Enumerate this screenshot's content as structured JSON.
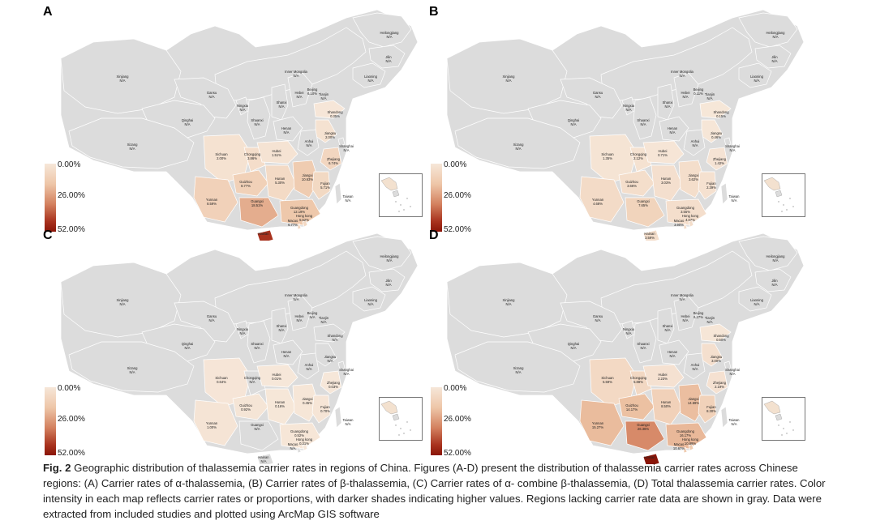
{
  "caption": {
    "fig_label": "Fig. 2",
    "text": "Geographic distribution of thalassemia carrier rates in regions of China. Figures (A-D) present the distribution of thalassemia carrier rates across Chinese regions: (A) Carrier rates of α-thalassemia, (B) Carrier rates of β-thalassemia, (C) Carrier rates of α- combine β-thalassemia, (D) Total thalassemia carrier rates. Color intensity in each map reflects carrier rates or proportions, with darker shades indicating higher values. Regions lacking carrier rate data are shown in gray. Data were extracted from included studies and plotted using ArcMap GIS software"
  },
  "legend": {
    "min": "0.00%",
    "mid": "26.00%",
    "max": "52.00%",
    "color_low": "#f6e7d9",
    "color_high": "#8a1508",
    "no_data_color": "#dcdcdc"
  },
  "panels": [
    {
      "letter": "A",
      "title": "Carrier rates of α-thalassemia",
      "regions": [
        {
          "name": "Heilongjiang",
          "value": "N/A"
        },
        {
          "name": "Jilin",
          "value": "N/A"
        },
        {
          "name": "Liaoning",
          "value": "N/A"
        },
        {
          "name": "Inner Mongolia",
          "value": "N/A"
        },
        {
          "name": "Xinjiang",
          "value": "N/A"
        },
        {
          "name": "Gansu",
          "value": "N/A"
        },
        {
          "name": "Beijing",
          "value": "6.10%"
        },
        {
          "name": "Tianjin",
          "value": "N/A"
        },
        {
          "name": "Hebei",
          "value": "N/A"
        },
        {
          "name": "Ningxia",
          "value": "N/A"
        },
        {
          "name": "Shanxi",
          "value": "N/A"
        },
        {
          "name": "Shandong",
          "value": "0.35%"
        },
        {
          "name": "Qinghai",
          "value": "N/A"
        },
        {
          "name": "Shaanxi",
          "value": "N/A"
        },
        {
          "name": "Henan",
          "value": "N/A"
        },
        {
          "name": "Jiangsu",
          "value": "2.00%"
        },
        {
          "name": "Xizang",
          "value": "N/A"
        },
        {
          "name": "Anhui",
          "value": "N/A"
        },
        {
          "name": "Shanghai",
          "value": "N/A"
        },
        {
          "name": "Sichuan",
          "value": "2.00%"
        },
        {
          "name": "Chongqing",
          "value": "3.86%"
        },
        {
          "name": "Hubei",
          "value": "1.51%"
        },
        {
          "name": "Zhejiang",
          "value": "6.74%"
        },
        {
          "name": "Guizhou",
          "value": "8.77%"
        },
        {
          "name": "Hunan",
          "value": "5.30%"
        },
        {
          "name": "Jiangxi",
          "value": "10.63%"
        },
        {
          "name": "Fujian",
          "value": "5.71%"
        },
        {
          "name": "Yunnan",
          "value": "8.59%"
        },
        {
          "name": "Guangxi",
          "value": "18.51%"
        },
        {
          "name": "Guangdong",
          "value": "12.19%"
        },
        {
          "name": "Taiwan",
          "value": "N/A"
        },
        {
          "name": "Hong kong",
          "value": "5.52%"
        },
        {
          "name": "Macao",
          "value": "6.77%"
        },
        {
          "name": "Hainan",
          "value": ""
        }
      ]
    },
    {
      "letter": "B",
      "title": "Carrier rates of β-thalassemia",
      "regions": [
        {
          "name": "Heilongjiang",
          "value": "N/A"
        },
        {
          "name": "Jilin",
          "value": "N/A"
        },
        {
          "name": "Liaoning",
          "value": "N/A"
        },
        {
          "name": "Inner Mongolia",
          "value": "N/A"
        },
        {
          "name": "Xinjiang",
          "value": "N/A"
        },
        {
          "name": "Gansu",
          "value": "N/A"
        },
        {
          "name": "Beijing",
          "value": "0.11%"
        },
        {
          "name": "Tianjin",
          "value": "N/A"
        },
        {
          "name": "Hebei",
          "value": "N/A"
        },
        {
          "name": "Ningxia",
          "value": "N/A"
        },
        {
          "name": "Shanxi",
          "value": "N/A"
        },
        {
          "name": "Shandong",
          "value": "0.15%"
        },
        {
          "name": "Qinghai",
          "value": "N/A"
        },
        {
          "name": "Shaanxi",
          "value": "N/A"
        },
        {
          "name": "Henan",
          "value": "N/A"
        },
        {
          "name": "Jiangsu",
          "value": "0.46%"
        },
        {
          "name": "Xizang",
          "value": "N/A"
        },
        {
          "name": "Anhui",
          "value": "N/A"
        },
        {
          "name": "Shanghai",
          "value": "N/A"
        },
        {
          "name": "Sichuan",
          "value": "1.35%"
        },
        {
          "name": "Chongqing",
          "value": "2.12%"
        },
        {
          "name": "Hubei",
          "value": "0.71%"
        },
        {
          "name": "Zhejiang",
          "value": "1.42%"
        },
        {
          "name": "Guizhou",
          "value": "3.66%"
        },
        {
          "name": "Hunan",
          "value": "3.03%"
        },
        {
          "name": "Jiangxi",
          "value": "3.62%"
        },
        {
          "name": "Fujian",
          "value": "2.39%"
        },
        {
          "name": "Yunnan",
          "value": "4.68%"
        },
        {
          "name": "Guangxi",
          "value": "7.65%"
        },
        {
          "name": "Guangdong",
          "value": "3.55%"
        },
        {
          "name": "Taiwan",
          "value": "N/A"
        },
        {
          "name": "Hong kong",
          "value": "4.07%"
        },
        {
          "name": "Macao",
          "value": "3.90%"
        },
        {
          "name": "Hainan",
          "value": "3.59%"
        }
      ]
    },
    {
      "letter": "C",
      "title": "Carrier rates of α- combine β-thalassemia",
      "regions": [
        {
          "name": "Heilongjiang",
          "value": "N/A"
        },
        {
          "name": "Jilin",
          "value": "N/A"
        },
        {
          "name": "Liaoning",
          "value": "N/A"
        },
        {
          "name": "Inner Mongolia",
          "value": "N/A"
        },
        {
          "name": "Xinjiang",
          "value": "N/A"
        },
        {
          "name": "Gansu",
          "value": "N/A"
        },
        {
          "name": "Beijing",
          "value": "N/A"
        },
        {
          "name": "Tianjin",
          "value": "N/A"
        },
        {
          "name": "Hebei",
          "value": "N/A"
        },
        {
          "name": "Ningxia",
          "value": "N/A"
        },
        {
          "name": "Shanxi",
          "value": "N/A"
        },
        {
          "name": "Shandong",
          "value": "N/A"
        },
        {
          "name": "Qinghai",
          "value": "N/A"
        },
        {
          "name": "Shaanxi",
          "value": "N/A"
        },
        {
          "name": "Henan",
          "value": "N/A"
        },
        {
          "name": "Jiangsu",
          "value": "N/A"
        },
        {
          "name": "Xizang",
          "value": "N/A"
        },
        {
          "name": "Anhui",
          "value": "N/A"
        },
        {
          "name": "Shanghai",
          "value": "N/A"
        },
        {
          "name": "Sichuan",
          "value": "0.64%"
        },
        {
          "name": "Chongqing",
          "value": "N/A"
        },
        {
          "name": "Hubei",
          "value": "0.01%"
        },
        {
          "name": "Zhejiang",
          "value": "0.03%"
        },
        {
          "name": "Guizhou",
          "value": "0.92%"
        },
        {
          "name": "Hunan",
          "value": "0.16%"
        },
        {
          "name": "Jiangxi",
          "value": "0.45%"
        },
        {
          "name": "Fujian",
          "value": "0.70%"
        },
        {
          "name": "Yunnan",
          "value": "1.00%"
        },
        {
          "name": "Guangxi",
          "value": "N/A"
        },
        {
          "name": "Guangdong",
          "value": "0.52%"
        },
        {
          "name": "Taiwan",
          "value": "N/A"
        },
        {
          "name": "Hong kong",
          "value": "0.31%"
        },
        {
          "name": "Macao",
          "value": "N/A"
        },
        {
          "name": "Hainan",
          "value": "N/A"
        }
      ]
    },
    {
      "letter": "D",
      "title": "Total thalassemia carrier rates",
      "regions": [
        {
          "name": "Heilongjiang",
          "value": "N/A"
        },
        {
          "name": "Jilin",
          "value": "N/A"
        },
        {
          "name": "Liaoning",
          "value": "N/A"
        },
        {
          "name": "Inner Mongolia",
          "value": "N/A"
        },
        {
          "name": "Xinjiang",
          "value": "N/A"
        },
        {
          "name": "Gansu",
          "value": "N/A"
        },
        {
          "name": "Beijing",
          "value": "6.27%"
        },
        {
          "name": "Tianjin",
          "value": "N/A"
        },
        {
          "name": "Hebei",
          "value": "N/A"
        },
        {
          "name": "Ningxia",
          "value": "N/A"
        },
        {
          "name": "Shanxi",
          "value": "N/A"
        },
        {
          "name": "Shandong",
          "value": "0.50%"
        },
        {
          "name": "Qinghai",
          "value": "N/A"
        },
        {
          "name": "Shaanxi",
          "value": "N/A"
        },
        {
          "name": "Henan",
          "value": "N/A"
        },
        {
          "name": "Jiangsu",
          "value": "3.00%"
        },
        {
          "name": "Xizang",
          "value": "N/A"
        },
        {
          "name": "Anhui",
          "value": "N/A"
        },
        {
          "name": "Shanghai",
          "value": "N/A"
        },
        {
          "name": "Sichuan",
          "value": "5.59%"
        },
        {
          "name": "Chongqing",
          "value": "5.88%"
        },
        {
          "name": "Hubei",
          "value": "2.23%"
        },
        {
          "name": "Zhejiang",
          "value": "2.19%"
        },
        {
          "name": "Guizhou",
          "value": "14.17%"
        },
        {
          "name": "Hunan",
          "value": "8.50%"
        },
        {
          "name": "Jiangxi",
          "value": "14.69%"
        },
        {
          "name": "Fujian",
          "value": "8.30%"
        },
        {
          "name": "Yunnan",
          "value": "15.27%"
        },
        {
          "name": "Guangxi",
          "value": "26.36%"
        },
        {
          "name": "Guangdong",
          "value": "16.17%"
        },
        {
          "name": "Taiwan",
          "value": "N/A"
        },
        {
          "name": "Hong kong",
          "value": "10.89%"
        },
        {
          "name": "Macao",
          "value": "10.67%"
        },
        {
          "name": "Hainan",
          "value": ""
        }
      ]
    }
  ]
}
